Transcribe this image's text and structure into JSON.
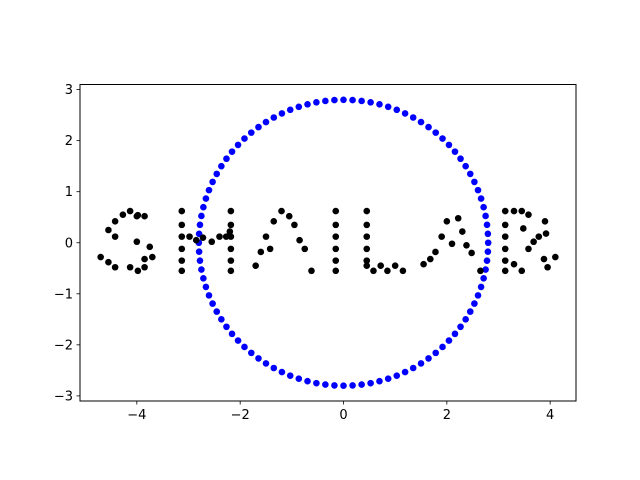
{
  "chart_data": {
    "type": "scatter",
    "title": "",
    "xlabel": "",
    "ylabel": "",
    "xlim": [
      -5.1,
      4.5
    ],
    "ylim": [
      -3.1,
      3.1
    ],
    "xticks": [
      -4,
      -2,
      0,
      2,
      4
    ],
    "yticks": [
      -3,
      -2,
      -1,
      0,
      1,
      2,
      3
    ],
    "grid": false,
    "legend": "none",
    "series": [
      {
        "color": "#0000ff",
        "shape": "circle",
        "n_points": 100,
        "center": [
          0,
          0
        ],
        "radius": 2.8
      },
      {
        "color": "#000000",
        "points": [
          [
            -4.0,
            0.52
          ],
          [
            -3.85,
            0.52
          ],
          [
            -4.42,
            0.42
          ],
          [
            -4.27,
            0.55
          ],
          [
            -4.13,
            0.62
          ],
          [
            -3.98,
            0.54
          ],
          [
            -4.55,
            0.25
          ],
          [
            -4.42,
            0.12
          ],
          [
            -4.0,
            0.02
          ],
          [
            -3.75,
            -0.08
          ],
          [
            -3.85,
            -0.32
          ],
          [
            -4.7,
            -0.28
          ],
          [
            -4.55,
            -0.38
          ],
          [
            -4.42,
            -0.48
          ],
          [
            -4.13,
            -0.48
          ],
          [
            -3.98,
            -0.55
          ],
          [
            -3.85,
            -0.48
          ],
          [
            -3.7,
            -0.28
          ],
          [
            -3.13,
            0.62
          ],
          [
            -3.13,
            0.35
          ],
          [
            -3.13,
            0.12
          ],
          [
            -3.13,
            -0.12
          ],
          [
            -3.13,
            -0.35
          ],
          [
            -3.13,
            -0.55
          ],
          [
            -2.98,
            0.12
          ],
          [
            -2.85,
            0.05
          ],
          [
            -2.72,
            0.1
          ],
          [
            -2.55,
            0.02
          ],
          [
            -2.4,
            0.12
          ],
          [
            -2.27,
            0.12
          ],
          [
            -2.2,
            0.22
          ],
          [
            -2.18,
            0.62
          ],
          [
            -2.18,
            0.35
          ],
          [
            -2.18,
            0.12
          ],
          [
            -2.18,
            -0.12
          ],
          [
            -2.18,
            -0.35
          ],
          [
            -2.18,
            -0.55
          ],
          [
            -1.7,
            -0.45
          ],
          [
            -1.6,
            -0.18
          ],
          [
            -1.5,
            0.12
          ],
          [
            -1.35,
            0.42
          ],
          [
            -1.2,
            0.62
          ],
          [
            -1.05,
            0.52
          ],
          [
            -0.95,
            0.35
          ],
          [
            -0.85,
            0.05
          ],
          [
            -0.75,
            -0.12
          ],
          [
            -1.42,
            -0.12
          ],
          [
            -0.62,
            -0.55
          ],
          [
            -0.15,
            0.62
          ],
          [
            -0.15,
            0.35
          ],
          [
            -0.15,
            0.12
          ],
          [
            -0.15,
            -0.12
          ],
          [
            -0.15,
            -0.35
          ],
          [
            -0.15,
            -0.55
          ],
          [
            0.45,
            0.62
          ],
          [
            0.45,
            0.35
          ],
          [
            0.45,
            0.12
          ],
          [
            0.45,
            -0.12
          ],
          [
            0.45,
            -0.35
          ],
          [
            0.45,
            -0.45
          ],
          [
            0.58,
            -0.55
          ],
          [
            0.72,
            -0.45
          ],
          [
            0.85,
            -0.55
          ],
          [
            1.0,
            -0.45
          ],
          [
            1.15,
            -0.55
          ],
          [
            1.55,
            -0.42
          ],
          [
            1.68,
            -0.32
          ],
          [
            1.78,
            -0.18
          ],
          [
            1.9,
            0.12
          ],
          [
            2.0,
            0.42
          ],
          [
            2.1,
            -0.02
          ],
          [
            2.22,
            0.48
          ],
          [
            2.3,
            0.22
          ],
          [
            2.38,
            -0.05
          ],
          [
            2.48,
            -0.2
          ],
          [
            2.65,
            -0.55
          ],
          [
            3.13,
            0.62
          ],
          [
            3.13,
            0.35
          ],
          [
            3.13,
            0.12
          ],
          [
            3.13,
            -0.12
          ],
          [
            3.13,
            -0.35
          ],
          [
            3.13,
            -0.55
          ],
          [
            3.3,
            0.62
          ],
          [
            3.45,
            0.62
          ],
          [
            3.58,
            0.55
          ],
          [
            3.48,
            0.28
          ],
          [
            3.68,
            0.02
          ],
          [
            3.78,
            0.12
          ],
          [
            3.58,
            -0.12
          ],
          [
            3.88,
            -0.32
          ],
          [
            3.9,
            0.42
          ],
          [
            3.92,
            0.18
          ],
          [
            3.95,
            -0.48
          ],
          [
            4.1,
            -0.28
          ],
          [
            3.3,
            -0.42
          ],
          [
            3.45,
            -0.55
          ]
        ]
      }
    ]
  }
}
